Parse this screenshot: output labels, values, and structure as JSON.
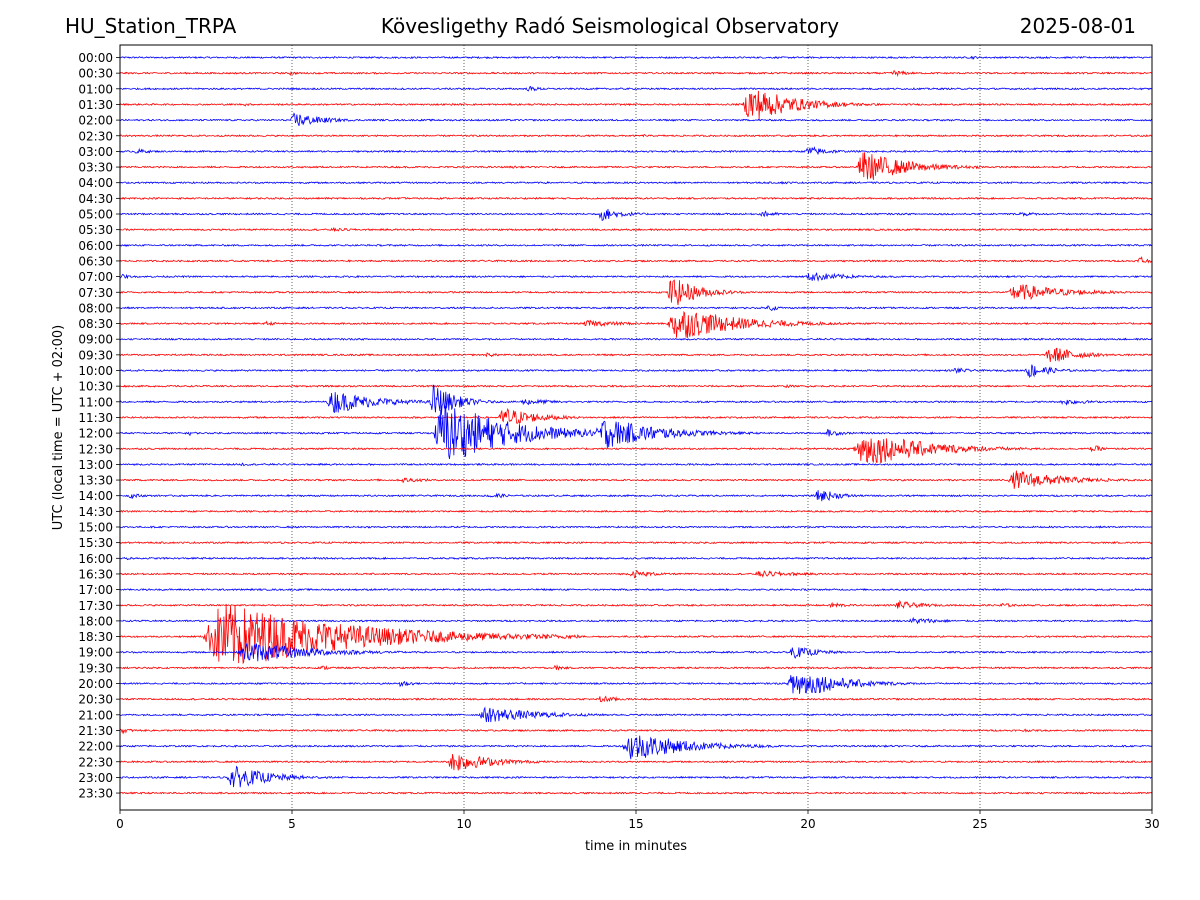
{
  "header": {
    "station": "HU_Station_TRPA",
    "observatory": "Kövesligethy Radó Seismological Observatory",
    "date": "2025-08-01"
  },
  "colors": {
    "blue": "#0000ff",
    "red": "#ff0000"
  },
  "chart_data": {
    "type": "line",
    "title": "Kövesligethy Radó Seismological Observatory",
    "xlabel": "time in minutes",
    "ylabel": "UTC (local time = UTC + 02:00)",
    "xlim": [
      0,
      30
    ],
    "x_ticks": [
      0,
      5,
      10,
      15,
      20,
      25,
      30
    ],
    "vertical_gridlines": [
      5,
      10,
      15,
      20,
      25
    ],
    "row_labels": [
      "00:00",
      "00:30",
      "01:00",
      "01:30",
      "02:00",
      "02:30",
      "03:00",
      "03:30",
      "04:00",
      "04:30",
      "05:00",
      "05:30",
      "06:00",
      "06:30",
      "07:00",
      "07:30",
      "08:00",
      "08:30",
      "09:00",
      "09:30",
      "10:00",
      "10:30",
      "11:00",
      "11:30",
      "12:00",
      "12:30",
      "13:00",
      "13:30",
      "14:00",
      "14:30",
      "15:00",
      "15:30",
      "16:00",
      "16:30",
      "17:00",
      "17:30",
      "18:00",
      "18:30",
      "19:00",
      "19:30",
      "20:00",
      "20:30",
      "21:00",
      "21:30",
      "22:00",
      "22:30",
      "23:00",
      "23:30"
    ],
    "trace_colors_alternating": [
      "blue",
      "red"
    ],
    "events": [
      {
        "row": "00:00",
        "start_min": 24.7,
        "amp": 0.3,
        "dur": 1.0
      },
      {
        "row": "00:30",
        "start_min": 4.9,
        "amp": 0.4,
        "dur": 0.8
      },
      {
        "row": "00:30",
        "start_min": 22.4,
        "amp": 0.6,
        "dur": 1.5
      },
      {
        "row": "01:00",
        "start_min": 11.8,
        "amp": 0.5,
        "dur": 1.5
      },
      {
        "row": "01:30",
        "start_min": 3.6,
        "amp": 0.3,
        "dur": 0.8
      },
      {
        "row": "01:30",
        "start_min": 18.1,
        "amp": 3.5,
        "dur": 4.0
      },
      {
        "row": "02:00",
        "start_min": 4.95,
        "amp": 1.5,
        "dur": 2.5
      },
      {
        "row": "02:30",
        "start_min": 15.2,
        "amp": 0.3,
        "dur": 0.6
      },
      {
        "row": "03:00",
        "start_min": 0.4,
        "amp": 0.5,
        "dur": 1.5
      },
      {
        "row": "03:00",
        "start_min": 19.9,
        "amp": 1.0,
        "dur": 2.0
      },
      {
        "row": "03:30",
        "start_min": 11.4,
        "amp": 0.3,
        "dur": 0.7
      },
      {
        "row": "03:30",
        "start_min": 21.4,
        "amp": 3.0,
        "dur": 4.0
      },
      {
        "row": "04:00",
        "start_min": 19.2,
        "amp": 0.3,
        "dur": 1.2
      },
      {
        "row": "05:00",
        "start_min": 13.9,
        "amp": 1.3,
        "dur": 2.0
      },
      {
        "row": "05:00",
        "start_min": 18.6,
        "amp": 0.6,
        "dur": 1.5
      },
      {
        "row": "05:00",
        "start_min": 26.1,
        "amp": 0.5,
        "dur": 1.5
      },
      {
        "row": "05:30",
        "start_min": 6.0,
        "amp": 0.3,
        "dur": 4.0
      },
      {
        "row": "06:30",
        "start_min": 29.6,
        "amp": 1.3,
        "dur": 0.6
      },
      {
        "row": "07:00",
        "start_min": 19.9,
        "amp": 0.9,
        "dur": 3.5
      },
      {
        "row": "07:00",
        "start_min": 0.0,
        "amp": 0.5,
        "dur": 0.8
      },
      {
        "row": "07:30",
        "start_min": 15.9,
        "amp": 3.0,
        "dur": 2.5
      },
      {
        "row": "07:30",
        "start_min": 25.8,
        "amp": 1.7,
        "dur": 4.5
      },
      {
        "row": "08:00",
        "start_min": 18.8,
        "amp": 0.7,
        "dur": 1.0
      },
      {
        "row": "08:30",
        "start_min": 4.2,
        "amp": 0.4,
        "dur": 1.2
      },
      {
        "row": "08:30",
        "start_min": 13.4,
        "amp": 0.6,
        "dur": 4.0
      },
      {
        "row": "08:30",
        "start_min": 15.9,
        "amp": 3.2,
        "dur": 5.5
      },
      {
        "row": "09:30",
        "start_min": 10.6,
        "amp": 0.4,
        "dur": 1.5
      },
      {
        "row": "09:30",
        "start_min": 26.9,
        "amp": 1.8,
        "dur": 2.5
      },
      {
        "row": "10:00",
        "start_min": 24.2,
        "amp": 0.6,
        "dur": 1.5
      },
      {
        "row": "10:00",
        "start_min": 26.3,
        "amp": 1.5,
        "dur": 2.0
      },
      {
        "row": "10:30",
        "start_min": 19.3,
        "amp": 0.3,
        "dur": 1.2
      },
      {
        "row": "11:00",
        "start_min": 6.0,
        "amp": 2.2,
        "dur": 4.0
      },
      {
        "row": "11:00",
        "start_min": 9.0,
        "amp": 3.5,
        "dur": 2.0
      },
      {
        "row": "11:00",
        "start_min": 11.6,
        "amp": 0.6,
        "dur": 3.0
      },
      {
        "row": "11:00",
        "start_min": 27.3,
        "amp": 0.6,
        "dur": 2.5
      },
      {
        "row": "11:30",
        "start_min": 11.0,
        "amp": 2.0,
        "dur": 3.0
      },
      {
        "row": "12:00",
        "start_min": 9.1,
        "amp": 6.0,
        "dur": 6.0
      },
      {
        "row": "12:00",
        "start_min": 13.8,
        "amp": 3.0,
        "dur": 5.0
      },
      {
        "row": "12:00",
        "start_min": 2.0,
        "amp": 0.6,
        "dur": 0.5
      },
      {
        "row": "12:00",
        "start_min": 20.5,
        "amp": 0.7,
        "dur": 1.5
      },
      {
        "row": "12:30",
        "start_min": 21.3,
        "amp": 3.5,
        "dur": 5.5
      },
      {
        "row": "12:30",
        "start_min": 28.2,
        "amp": 0.8,
        "dur": 1.0
      },
      {
        "row": "13:00",
        "start_min": 3.5,
        "amp": 0.3,
        "dur": 1.0
      },
      {
        "row": "13:30",
        "start_min": 8.1,
        "amp": 0.5,
        "dur": 2.5
      },
      {
        "row": "13:30",
        "start_min": 25.8,
        "amp": 1.8,
        "dur": 4.5
      },
      {
        "row": "14:00",
        "start_min": 0.2,
        "amp": 0.5,
        "dur": 1.5
      },
      {
        "row": "14:00",
        "start_min": 10.7,
        "amp": 0.8,
        "dur": 1.2
      },
      {
        "row": "14:00",
        "start_min": 20.2,
        "amp": 1.3,
        "dur": 2.0
      },
      {
        "row": "16:00",
        "start_min": 0.2,
        "amp": 0.4,
        "dur": 0.5
      },
      {
        "row": "16:30",
        "start_min": 14.8,
        "amp": 0.8,
        "dur": 2.0
      },
      {
        "row": "16:30",
        "start_min": 18.4,
        "amp": 0.6,
        "dur": 4.0
      },
      {
        "row": "17:30",
        "start_min": 20.6,
        "amp": 0.6,
        "dur": 1.5
      },
      {
        "row": "17:30",
        "start_min": 22.5,
        "amp": 0.8,
        "dur": 2.5
      },
      {
        "row": "17:30",
        "start_min": 25.5,
        "amp": 0.5,
        "dur": 1.5
      },
      {
        "row": "18:00",
        "start_min": 22.9,
        "amp": 0.6,
        "dur": 3.0
      },
      {
        "row": "18:30",
        "start_min": 2.4,
        "amp": 6.5,
        "dur": 11.0
      },
      {
        "row": "18:30",
        "start_min": 9.7,
        "amp": 0.9,
        "dur": 1.5
      },
      {
        "row": "19:00",
        "start_min": 3.4,
        "amp": 2.0,
        "dur": 6.0
      },
      {
        "row": "19:00",
        "start_min": 19.4,
        "amp": 1.2,
        "dur": 2.5
      },
      {
        "row": "19:30",
        "start_min": 5.8,
        "amp": 0.4,
        "dur": 1.5
      },
      {
        "row": "19:30",
        "start_min": 12.6,
        "amp": 0.5,
        "dur": 1.0
      },
      {
        "row": "20:00",
        "start_min": 8.1,
        "amp": 0.8,
        "dur": 1.0
      },
      {
        "row": "20:00",
        "start_min": 19.4,
        "amp": 3.0,
        "dur": 4.0
      },
      {
        "row": "20:30",
        "start_min": 13.9,
        "amp": 0.8,
        "dur": 1.5
      },
      {
        "row": "21:00",
        "start_min": 10.4,
        "amp": 1.5,
        "dur": 5.0
      },
      {
        "row": "21:30",
        "start_min": 0.0,
        "amp": 0.5,
        "dur": 1.2
      },
      {
        "row": "21:30",
        "start_min": 26.2,
        "amp": 0.4,
        "dur": 0.8
      },
      {
        "row": "22:00",
        "start_min": 14.6,
        "amp": 2.8,
        "dur": 5.0
      },
      {
        "row": "22:30",
        "start_min": 9.5,
        "amp": 2.0,
        "dur": 3.5
      },
      {
        "row": "23:00",
        "start_min": 3.1,
        "amp": 2.2,
        "dur": 3.5
      },
      {
        "row": "23:00",
        "start_min": 17.4,
        "amp": 0.3,
        "dur": 0.6
      }
    ]
  }
}
